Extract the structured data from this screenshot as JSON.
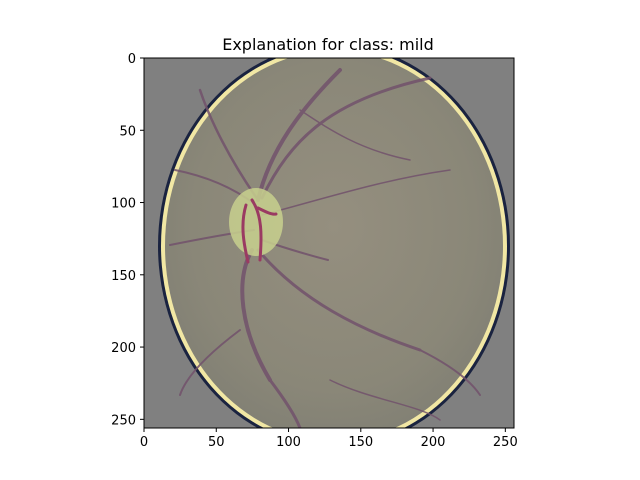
{
  "figure": {
    "title": "Explanation for class: mild",
    "background_color": "#ffffff"
  },
  "image": {
    "description": "fundus retina photograph with explanation overlay",
    "pixel_extent": {
      "x": [
        0,
        256
      ],
      "y": [
        0,
        256
      ]
    },
    "colors": {
      "fill_gray": "#808080",
      "retina_base": "#8a8778",
      "retina_center": "#958f7f",
      "rim_yellow": "#f1e7a4",
      "rim_navy": "#1a2340",
      "vessel": "#72526c",
      "optic_disc": "#c8d08e",
      "optic_vessel": "#9a3a62"
    }
  },
  "axes": {
    "xlim": [
      0,
      256
    ],
    "ylim": [
      256,
      0
    ],
    "x_ticks": [
      0,
      50,
      100,
      150,
      200,
      250
    ],
    "y_ticks": [
      0,
      50,
      100,
      150,
      200,
      250
    ],
    "x_tick_labels": [
      "0",
      "50",
      "100",
      "150",
      "200",
      "250"
    ],
    "y_tick_labels": [
      "0",
      "50",
      "100",
      "150",
      "200",
      "250"
    ]
  }
}
